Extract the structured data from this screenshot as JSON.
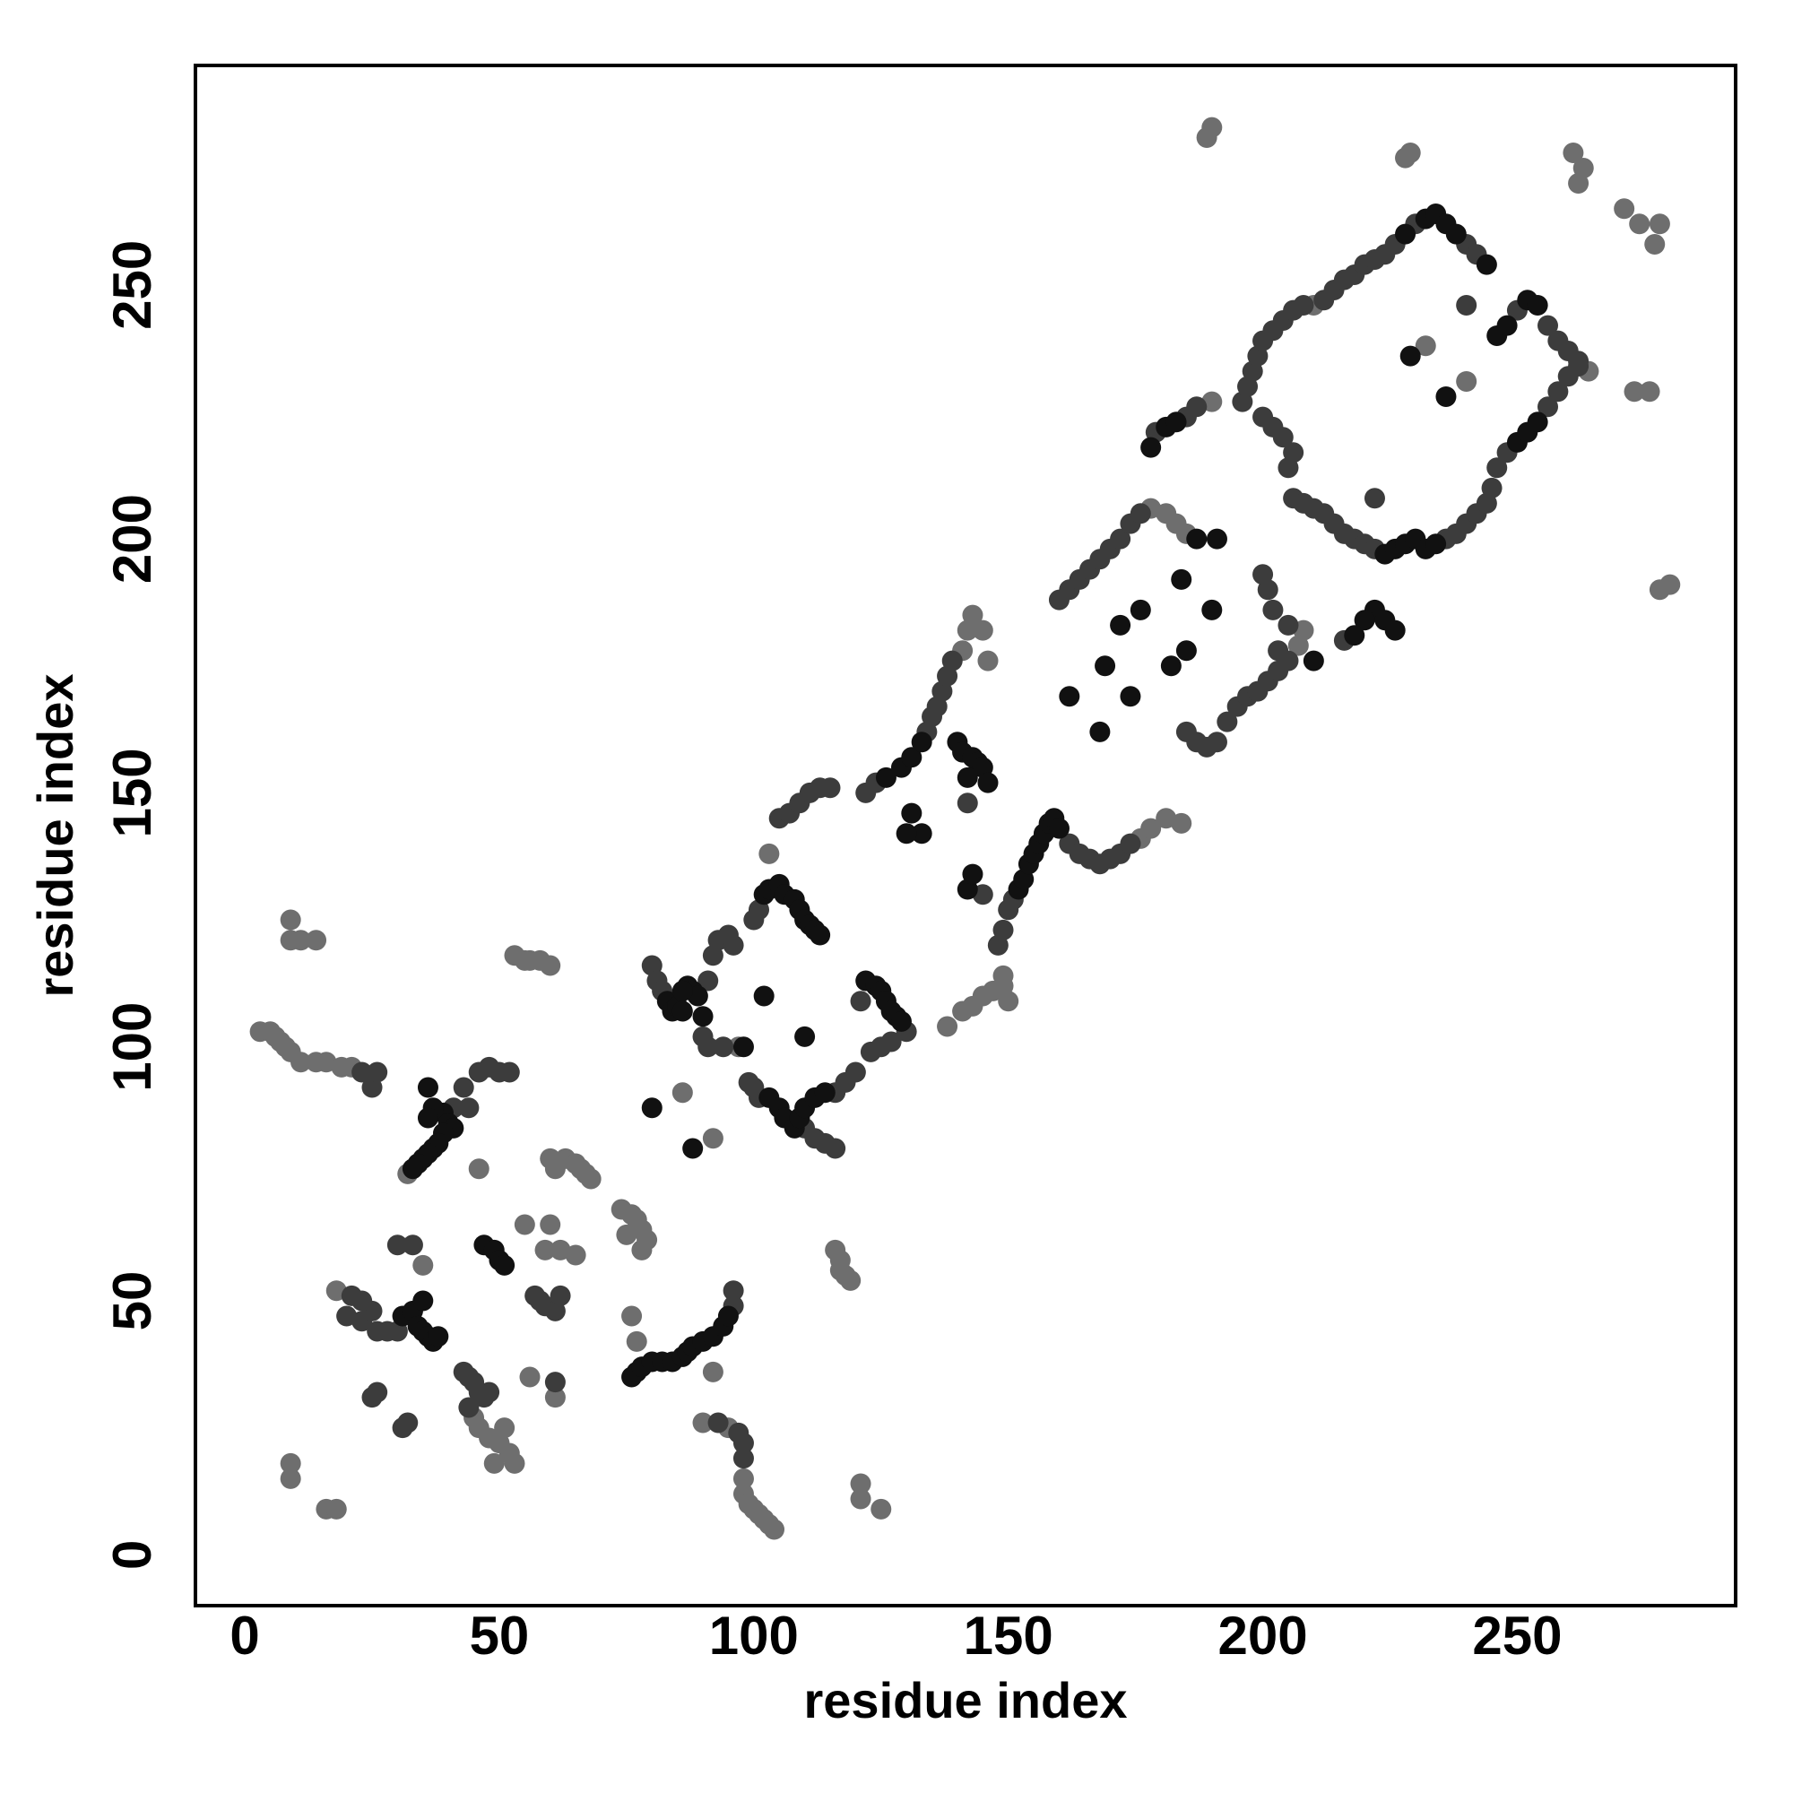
{
  "chart_data": {
    "type": "scatter",
    "x_label": "residue index",
    "y_label": "residue index",
    "xlim": [
      -9.7,
      292.9
    ],
    "ylim": [
      -10,
      293.2
    ],
    "xticks": [
      0,
      50,
      100,
      150,
      200,
      250
    ],
    "yticks": [
      0,
      50,
      100,
      150,
      200,
      250
    ],
    "series": [
      {
        "color": "#6e6e6e",
        "x": [
          3,
          5,
          6,
          7,
          8,
          9,
          11,
          14,
          16,
          19,
          21,
          9,
          9,
          11,
          14,
          9,
          9,
          16,
          18,
          53,
          55,
          56,
          58,
          60,
          60,
          61,
          63,
          65,
          66,
          67,
          68,
          55,
          60,
          59,
          62,
          65,
          74,
          76,
          77,
          78,
          79,
          78,
          75,
          35,
          32,
          18,
          45,
          46,
          48,
          50,
          49,
          52,
          53,
          51,
          46,
          56,
          61,
          76,
          77,
          92,
          90,
          95,
          98,
          98,
          99,
          100,
          101,
          102,
          103,
          104,
          116,
          117,
          117,
          118,
          119,
          121,
          121,
          125,
          103,
          141,
          142,
          143,
          145,
          146,
          138,
          141,
          143,
          145,
          147,
          149,
          150,
          149,
          176,
          178,
          181,
          184,
          178,
          181,
          183,
          185,
          207,
          208,
          189,
          190,
          190,
          210,
          228,
          229,
          261,
          263,
          262,
          271,
          274,
          278,
          277,
          273,
          276,
          278,
          280,
          264,
          232,
          240,
          86,
          92,
          97
        ],
        "values": [
          103,
          103,
          102,
          101,
          100,
          99,
          97,
          97,
          97,
          96,
          96,
          125,
          121,
          121,
          121,
          18,
          15,
          9,
          9,
          118,
          117,
          117,
          117,
          116,
          78,
          76,
          78,
          77,
          76,
          75,
          74,
          65,
          65,
          60,
          60,
          59,
          68,
          67,
          66,
          64,
          62,
          60,
          63,
          57,
          75,
          52,
          27,
          25,
          23,
          22,
          18,
          20,
          18,
          25,
          76,
          35,
          31,
          47,
          42,
          36,
          26,
          25,
          15,
          12,
          10,
          9,
          8,
          7,
          6,
          5,
          60,
          58,
          56,
          55,
          54,
          14,
          11,
          9,
          138,
          178,
          182,
          185,
          182,
          176,
          104,
          107,
          108,
          110,
          111,
          112,
          109,
          114,
          141,
          143,
          145,
          144,
          206,
          205,
          203,
          201,
          179,
          182,
          279,
          281,
          227,
          246,
          275,
          276,
          276,
          273,
          270,
          265,
          262,
          262,
          258,
          229,
          229,
          190,
          191,
          233,
          238,
          231,
          91,
          82,
          100
        ]
      },
      {
        "color": "#3c3c3c",
        "x": [
          25,
          26,
          23,
          43,
          46,
          48,
          50,
          52,
          44,
          41,
          30,
          33,
          20,
          23,
          25,
          26,
          28,
          30,
          21,
          23,
          25,
          26,
          31,
          32,
          43,
          44,
          45,
          46,
          47,
          48,
          44,
          57,
          58,
          59,
          61,
          62,
          61,
          96,
          96,
          97,
          98,
          98,
          93,
          80,
          81,
          82,
          91,
          92,
          93,
          95,
          96,
          90,
          91,
          94,
          100,
          101,
          99,
          100,
          101,
          116,
          118,
          120,
          110,
          112,
          114,
          116,
          130,
          127,
          125,
          123,
          121,
          105,
          107,
          109,
          111,
          113,
          115,
          122,
          124,
          134,
          135,
          136,
          137,
          138,
          139,
          145,
          142,
          148,
          149,
          150,
          151,
          162,
          164,
          166,
          168,
          170,
          172,
          174,
          160,
          162,
          164,
          166,
          168,
          170,
          172,
          174,
          176,
          185,
          187,
          189,
          191,
          193,
          195,
          197,
          199,
          201,
          203,
          205,
          200,
          201,
          202,
          205,
          203,
          179,
          185,
          187,
          196,
          197,
          198,
          199,
          200,
          202,
          204,
          206,
          208,
          212,
          214,
          216,
          218,
          220,
          222,
          224,
          226,
          230,
          240,
          242,
          200,
          202,
          204,
          206,
          205,
          206,
          208,
          210,
          212,
          214,
          216,
          218,
          220,
          222,
          236,
          238,
          240,
          242,
          244,
          245,
          246,
          248,
          256,
          258,
          260,
          262,
          250,
          256,
          258,
          260,
          262,
          216,
          240,
          222
        ],
        "values": [
          92,
          95,
          95,
          92,
          95,
          96,
          95,
          95,
          88,
          88,
          61,
          61,
          47,
          46,
          48,
          44,
          44,
          44,
          51,
          50,
          31,
          32,
          25,
          26,
          36,
          35,
          34,
          32,
          31,
          32,
          29,
          51,
          50,
          49,
          48,
          51,
          34,
          49,
          52,
          24,
          22,
          19,
          26,
          116,
          113,
          111,
          113,
          118,
          121,
          122,
          120,
          102,
          100,
          100,
          125,
          127,
          93,
          92,
          90,
          91,
          93,
          95,
          84,
          82,
          81,
          80,
          103,
          101,
          100,
          99,
          109,
          145,
          146,
          148,
          150,
          151,
          151,
          150,
          152,
          162,
          165,
          167,
          170,
          173,
          176,
          130,
          148,
          120,
          123,
          127,
          129,
          140,
          138,
          137,
          136,
          137,
          138,
          140,
          188,
          190,
          192,
          194,
          196,
          198,
          200,
          203,
          205,
          162,
          160,
          159,
          160,
          164,
          167,
          169,
          170,
          172,
          174,
          176,
          193,
          190,
          186,
          183,
          178,
          221,
          224,
          226,
          227,
          230,
          233,
          236,
          239,
          241,
          243,
          245,
          246,
          247,
          249,
          251,
          252,
          254,
          255,
          256,
          258,
          262,
          258,
          256,
          224,
          222,
          220,
          217,
          214,
          208,
          207,
          206,
          205,
          203,
          201,
          200,
          199,
          198,
          200,
          201,
          203,
          205,
          207,
          210,
          214,
          217,
          226,
          229,
          232,
          234,
          245,
          242,
          239,
          237,
          235,
          180,
          246,
          208
        ]
      },
      {
        "color": "#111111",
        "x": [
          36,
          39,
          37,
          36,
          40,
          41,
          39,
          38,
          37,
          36,
          35,
          34,
          33,
          31,
          33,
          34,
          35,
          36,
          37,
          38,
          35,
          47,
          49,
          50,
          51,
          76,
          77,
          78,
          80,
          82,
          84,
          86,
          87,
          88,
          90,
          92,
          94,
          95,
          80,
          88,
          83,
          84,
          85,
          86,
          87,
          88,
          89,
          90,
          102,
          103,
          105,
          106,
          108,
          109,
          110,
          111,
          112,
          113,
          102,
          110,
          103,
          105,
          106,
          108,
          109,
          110,
          112,
          114,
          122,
          124,
          125,
          126,
          127,
          128,
          129,
          126,
          129,
          131,
          133,
          131,
          133,
          130,
          140,
          141,
          143,
          144,
          145,
          142,
          146,
          142,
          143,
          152,
          153,
          154,
          155,
          156,
          157,
          158,
          159,
          160,
          162,
          168,
          169,
          172,
          174,
          176,
          182,
          184,
          185,
          190,
          187,
          191,
          178,
          181,
          183,
          228,
          232,
          234,
          236,
          238,
          224,
          226,
          228,
          230,
          232,
          234,
          250,
          252,
          254,
          246,
          248,
          252,
          254,
          222,
          224,
          226,
          220,
          218,
          229,
          236,
          244,
          210,
          98,
          86
        ],
        "values": [
          92,
          87,
          88,
          86,
          85,
          84,
          83,
          81,
          80,
          79,
          78,
          77,
          76,
          47,
          48,
          45,
          44,
          43,
          42,
          43,
          50,
          61,
          60,
          58,
          57,
          35,
          36,
          37,
          38,
          38,
          38,
          39,
          40,
          41,
          42,
          43,
          45,
          47,
          88,
          80,
          109,
          107,
          108,
          107,
          112,
          111,
          110,
          106,
          130,
          131,
          132,
          130,
          129,
          127,
          125,
          124,
          123,
          122,
          110,
          102,
          90,
          88,
          86,
          84,
          86,
          88,
          90,
          91,
          113,
          112,
          111,
          109,
          107,
          106,
          105,
          153,
          155,
          157,
          160,
          146,
          142,
          142,
          160,
          158,
          157,
          156,
          155,
          153,
          152,
          131,
          134,
          131,
          133,
          136,
          138,
          140,
          142,
          144,
          145,
          143,
          169,
          162,
          175,
          183,
          169,
          186,
          175,
          192,
          178,
          186,
          200,
          200,
          218,
          222,
          223,
          260,
          263,
          264,
          262,
          260,
          197,
          198,
          199,
          200,
          198,
          199,
          219,
          221,
          223,
          240,
          242,
          247,
          246,
          186,
          184,
          182,
          184,
          181,
          236,
          228,
          254,
          176,
          100,
          111
        ]
      }
    ]
  }
}
